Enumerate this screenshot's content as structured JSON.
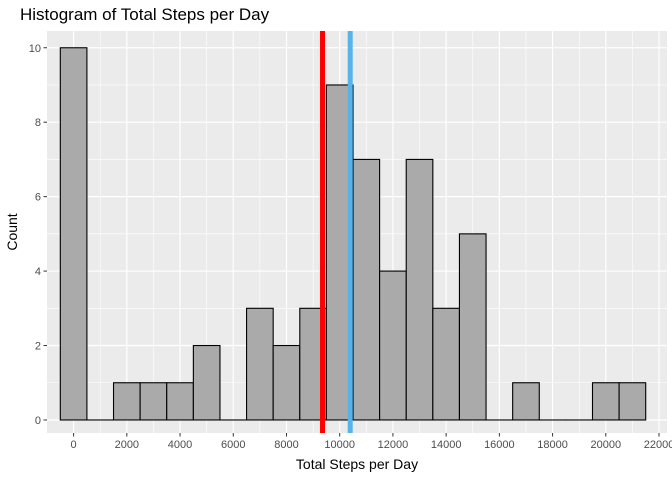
{
  "chart_data": {
    "type": "bar",
    "title": "Histogram of Total Steps per Day",
    "xlabel": "Total Steps per Day",
    "ylabel": "Count",
    "bin_width": 1000,
    "xlim": [
      -1000,
      22300
    ],
    "ylim": [
      -0.35,
      10.45
    ],
    "x_ticks": [
      0,
      2000,
      4000,
      6000,
      8000,
      10000,
      12000,
      14000,
      16000,
      18000,
      20000,
      22000
    ],
    "y_ticks": [
      0,
      2,
      4,
      6,
      8,
      10
    ],
    "bins": [
      {
        "center": 0,
        "count": 10
      },
      {
        "center": 1000,
        "count": 0
      },
      {
        "center": 2000,
        "count": 1
      },
      {
        "center": 3000,
        "count": 1
      },
      {
        "center": 4000,
        "count": 1
      },
      {
        "center": 5000,
        "count": 2
      },
      {
        "center": 6000,
        "count": 0
      },
      {
        "center": 7000,
        "count": 3
      },
      {
        "center": 8000,
        "count": 2
      },
      {
        "center": 9000,
        "count": 3
      },
      {
        "center": 10000,
        "count": 9
      },
      {
        "center": 11000,
        "count": 7
      },
      {
        "center": 12000,
        "count": 4
      },
      {
        "center": 13000,
        "count": 7
      },
      {
        "center": 14000,
        "count": 3
      },
      {
        "center": 15000,
        "count": 5
      },
      {
        "center": 16000,
        "count": 0
      },
      {
        "center": 17000,
        "count": 1
      },
      {
        "center": 18000,
        "count": 0
      },
      {
        "center": 19000,
        "count": 0
      },
      {
        "center": 20000,
        "count": 1
      },
      {
        "center": 21000,
        "count": 1
      }
    ],
    "bar_fill": "#AAAAAA",
    "bar_stroke": "#000000",
    "reference_lines": [
      {
        "x": 9354,
        "color": "#FF0000"
      },
      {
        "x": 10395,
        "color": "#56B4E9"
      }
    ],
    "panel_background": "#EBEBEB",
    "grid": true,
    "grid_color": "#FFFFFF",
    "legend": "none"
  }
}
